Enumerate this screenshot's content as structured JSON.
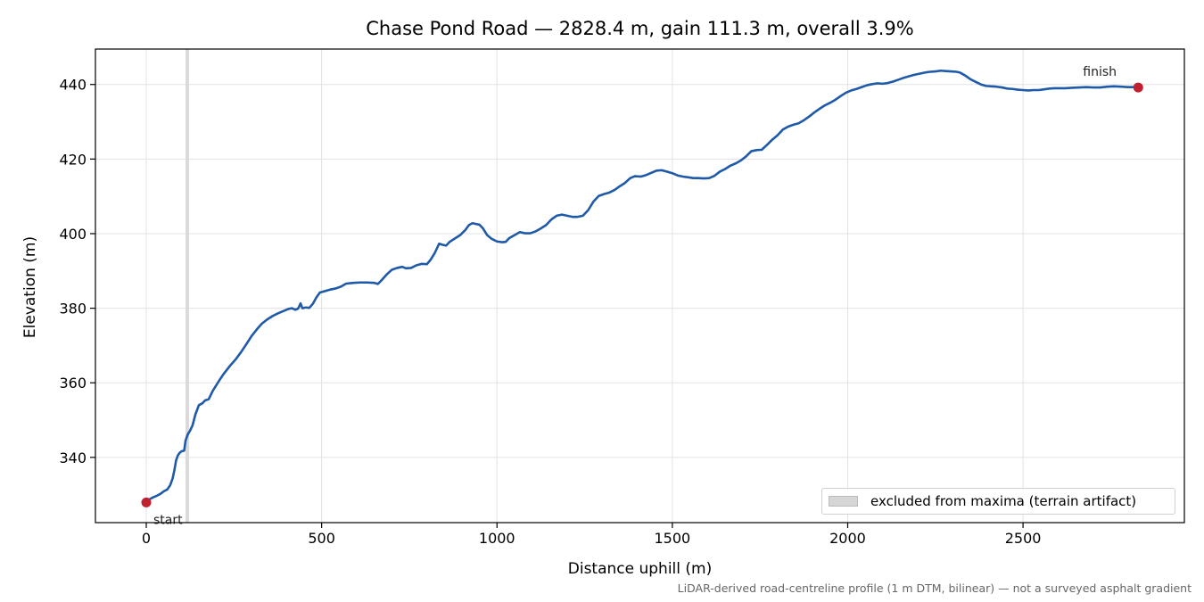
{
  "chart_data": {
    "type": "line",
    "title": "Chase Pond Road — 2828.4 m, gain 111.3 m, overall 3.9%",
    "xlabel": "Distance uphill (m)",
    "ylabel": "Elevation (m)",
    "xlim": [
      -145,
      2960
    ],
    "ylim": [
      322.5,
      449.5
    ],
    "x_ticks": [
      0,
      500,
      1000,
      1500,
      2000,
      2500
    ],
    "y_ticks": [
      340,
      360,
      380,
      400,
      420,
      440
    ],
    "grid": true,
    "legend_position": "lower-right",
    "legend": [
      {
        "label": "excluded from maxima (terrain artifact)",
        "color": "#d6d6d6"
      }
    ],
    "excluded_x": 117,
    "line_color": "#1f5aa8",
    "marker_color": "#c0202f",
    "series": [
      {
        "points": [
          [
            0,
            327.9
          ],
          [
            10,
            328.8
          ],
          [
            20,
            329.3
          ],
          [
            30,
            329.7
          ],
          [
            40,
            330.2
          ],
          [
            50,
            330.9
          ],
          [
            60,
            331.4
          ],
          [
            68,
            332.5
          ],
          [
            75,
            334.3
          ],
          [
            80,
            336.5
          ],
          [
            85,
            339.2
          ],
          [
            90,
            340.5
          ],
          [
            95,
            341.2
          ],
          [
            100,
            341.6
          ],
          [
            108,
            341.8
          ],
          [
            112,
            344.5
          ],
          [
            118,
            346.1
          ],
          [
            125,
            347.2
          ],
          [
            132,
            348.6
          ],
          [
            140,
            351.5
          ],
          [
            150,
            354.0
          ],
          [
            160,
            354.5
          ],
          [
            168,
            355.3
          ],
          [
            178,
            355.6
          ],
          [
            190,
            357.9
          ],
          [
            200,
            359.4
          ],
          [
            210,
            360.9
          ],
          [
            220,
            362.3
          ],
          [
            230,
            363.5
          ],
          [
            240,
            364.7
          ],
          [
            255,
            366.3
          ],
          [
            270,
            368.2
          ],
          [
            285,
            370.3
          ],
          [
            300,
            372.5
          ],
          [
            315,
            374.3
          ],
          [
            330,
            375.9
          ],
          [
            345,
            377.0
          ],
          [
            360,
            377.9
          ],
          [
            375,
            378.6
          ],
          [
            390,
            379.2
          ],
          [
            405,
            379.8
          ],
          [
            415,
            380.0
          ],
          [
            425,
            379.6
          ],
          [
            433,
            379.9
          ],
          [
            440,
            381.3
          ],
          [
            445,
            380.0
          ],
          [
            455,
            380.2
          ],
          [
            465,
            380.1
          ],
          [
            475,
            381.2
          ],
          [
            485,
            382.9
          ],
          [
            495,
            384.2
          ],
          [
            510,
            384.6
          ],
          [
            525,
            385.0
          ],
          [
            540,
            385.3
          ],
          [
            555,
            385.8
          ],
          [
            570,
            386.6
          ],
          [
            590,
            386.8
          ],
          [
            610,
            386.9
          ],
          [
            630,
            386.9
          ],
          [
            650,
            386.8
          ],
          [
            660,
            386.5
          ],
          [
            670,
            387.4
          ],
          [
            685,
            389.0
          ],
          [
            700,
            390.3
          ],
          [
            715,
            390.8
          ],
          [
            730,
            391.1
          ],
          [
            740,
            390.7
          ],
          [
            755,
            390.8
          ],
          [
            770,
            391.5
          ],
          [
            785,
            391.9
          ],
          [
            800,
            391.8
          ],
          [
            810,
            392.9
          ],
          [
            822,
            394.7
          ],
          [
            835,
            397.3
          ],
          [
            845,
            397.0
          ],
          [
            855,
            396.8
          ],
          [
            865,
            397.8
          ],
          [
            880,
            398.7
          ],
          [
            895,
            399.6
          ],
          [
            910,
            401.0
          ],
          [
            920,
            402.3
          ],
          [
            930,
            402.8
          ],
          [
            940,
            402.6
          ],
          [
            950,
            402.4
          ],
          [
            960,
            401.4
          ],
          [
            972,
            399.6
          ],
          [
            985,
            398.6
          ],
          [
            1000,
            397.9
          ],
          [
            1015,
            397.7
          ],
          [
            1025,
            397.8
          ],
          [
            1035,
            398.8
          ],
          [
            1050,
            399.6
          ],
          [
            1065,
            400.4
          ],
          [
            1080,
            400.1
          ],
          [
            1095,
            400.1
          ],
          [
            1110,
            400.6
          ],
          [
            1125,
            401.4
          ],
          [
            1140,
            402.3
          ],
          [
            1155,
            403.8
          ],
          [
            1170,
            404.8
          ],
          [
            1185,
            405.1
          ],
          [
            1200,
            404.8
          ],
          [
            1215,
            404.5
          ],
          [
            1230,
            404.5
          ],
          [
            1245,
            404.8
          ],
          [
            1260,
            406.3
          ],
          [
            1275,
            408.6
          ],
          [
            1290,
            410.1
          ],
          [
            1305,
            410.6
          ],
          [
            1320,
            411.0
          ],
          [
            1335,
            411.7
          ],
          [
            1350,
            412.7
          ],
          [
            1365,
            413.6
          ],
          [
            1380,
            414.9
          ],
          [
            1393,
            415.4
          ],
          [
            1410,
            415.3
          ],
          [
            1425,
            415.7
          ],
          [
            1440,
            416.3
          ],
          [
            1455,
            416.9
          ],
          [
            1470,
            417.0
          ],
          [
            1485,
            416.6
          ],
          [
            1500,
            416.2
          ],
          [
            1515,
            415.6
          ],
          [
            1530,
            415.3
          ],
          [
            1545,
            415.1
          ],
          [
            1560,
            414.9
          ],
          [
            1575,
            414.9
          ],
          [
            1590,
            414.8
          ],
          [
            1605,
            414.9
          ],
          [
            1620,
            415.5
          ],
          [
            1635,
            416.6
          ],
          [
            1650,
            417.3
          ],
          [
            1665,
            418.2
          ],
          [
            1680,
            418.8
          ],
          [
            1695,
            419.6
          ],
          [
            1710,
            420.7
          ],
          [
            1725,
            422.1
          ],
          [
            1740,
            422.4
          ],
          [
            1755,
            422.5
          ],
          [
            1770,
            423.8
          ],
          [
            1785,
            425.2
          ],
          [
            1800,
            426.4
          ],
          [
            1815,
            427.9
          ],
          [
            1830,
            428.7
          ],
          [
            1845,
            429.2
          ],
          [
            1860,
            429.6
          ],
          [
            1875,
            430.4
          ],
          [
            1890,
            431.4
          ],
          [
            1905,
            432.5
          ],
          [
            1920,
            433.5
          ],
          [
            1935,
            434.4
          ],
          [
            1950,
            435.1
          ],
          [
            1965,
            435.9
          ],
          [
            1980,
            436.9
          ],
          [
            1995,
            437.8
          ],
          [
            2010,
            438.4
          ],
          [
            2025,
            438.8
          ],
          [
            2040,
            439.3
          ],
          [
            2055,
            439.8
          ],
          [
            2070,
            440.1
          ],
          [
            2085,
            440.3
          ],
          [
            2100,
            440.2
          ],
          [
            2115,
            440.4
          ],
          [
            2130,
            440.8
          ],
          [
            2145,
            441.3
          ],
          [
            2160,
            441.8
          ],
          [
            2175,
            442.2
          ],
          [
            2190,
            442.6
          ],
          [
            2205,
            442.9
          ],
          [
            2220,
            443.2
          ],
          [
            2235,
            443.4
          ],
          [
            2250,
            443.5
          ],
          [
            2265,
            443.7
          ],
          [
            2280,
            443.6
          ],
          [
            2295,
            443.5
          ],
          [
            2310,
            443.4
          ],
          [
            2320,
            443.2
          ],
          [
            2335,
            442.4
          ],
          [
            2350,
            441.4
          ],
          [
            2365,
            440.7
          ],
          [
            2380,
            440.0
          ],
          [
            2395,
            439.6
          ],
          [
            2410,
            439.5
          ],
          [
            2425,
            439.4
          ],
          [
            2440,
            439.2
          ],
          [
            2455,
            438.9
          ],
          [
            2470,
            438.8
          ],
          [
            2485,
            438.6
          ],
          [
            2500,
            438.5
          ],
          [
            2515,
            438.4
          ],
          [
            2530,
            438.5
          ],
          [
            2545,
            438.5
          ],
          [
            2560,
            438.7
          ],
          [
            2575,
            438.9
          ],
          [
            2590,
            439.0
          ],
          [
            2605,
            439.0
          ],
          [
            2620,
            439.0
          ],
          [
            2640,
            439.1
          ],
          [
            2660,
            439.2
          ],
          [
            2680,
            439.3
          ],
          [
            2700,
            439.2
          ],
          [
            2720,
            439.2
          ],
          [
            2740,
            439.4
          ],
          [
            2760,
            439.5
          ],
          [
            2780,
            439.4
          ],
          [
            2800,
            439.3
          ],
          [
            2815,
            439.3
          ],
          [
            2828.4,
            439.2
          ]
        ]
      }
    ],
    "annotations": [
      {
        "text": "start",
        "x": 0,
        "y": 327.9
      },
      {
        "text": "finish",
        "x": 2828.4,
        "y": 439.2
      }
    ],
    "footnote": "LiDAR-derived road-centreline profile (1 m DTM, bilinear) — not a surveyed asphalt gradient"
  }
}
